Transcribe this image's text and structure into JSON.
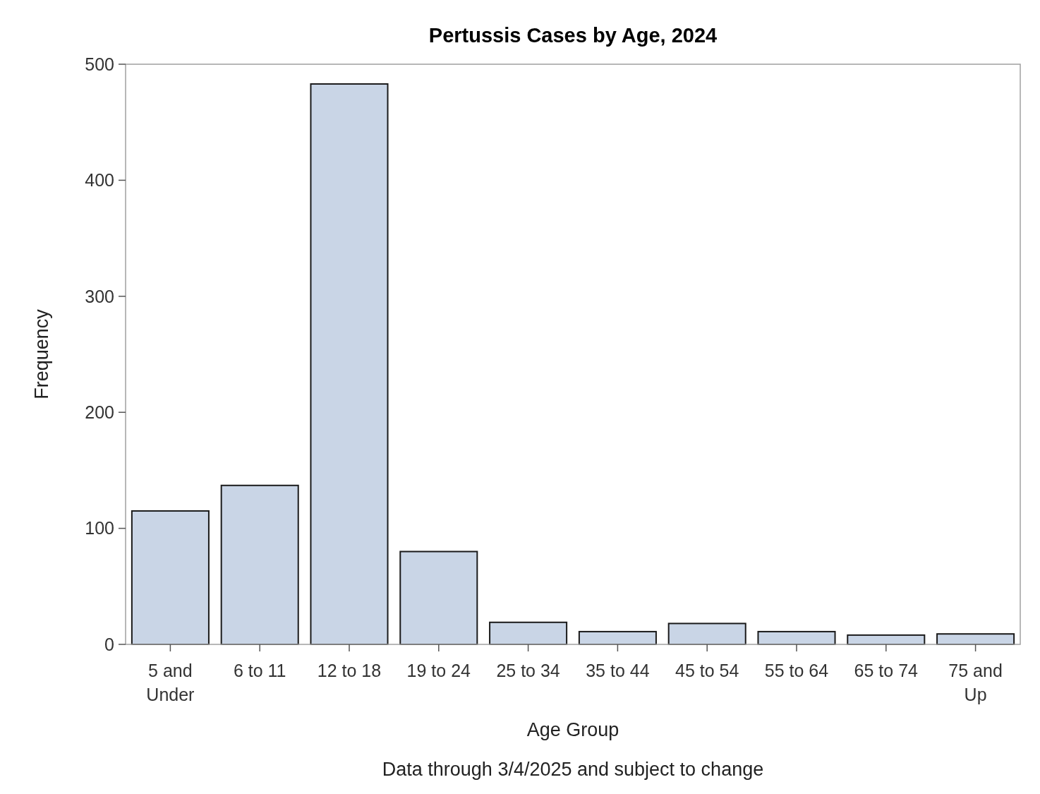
{
  "chart_data": {
    "type": "bar",
    "title": "Pertussis Cases by Age, 2024",
    "xlabel": "Age Group",
    "ylabel": "Frequency",
    "categories": [
      "5 and Under",
      "6 to 11",
      "12 to 18",
      "19 to 24",
      "25 to 34",
      "35 to 44",
      "45 to 54",
      "55 to 64",
      "65 to 74",
      "75 and Up"
    ],
    "values": [
      115,
      137,
      483,
      80,
      19,
      11,
      18,
      11,
      8,
      9
    ],
    "color": "#c9d5e6",
    "ylim": [
      0,
      500
    ],
    "yticks": [
      0,
      100,
      200,
      300,
      400,
      500
    ],
    "grid": false,
    "annotations": [
      "Data through 3/4/2025 and subject to change"
    ]
  }
}
